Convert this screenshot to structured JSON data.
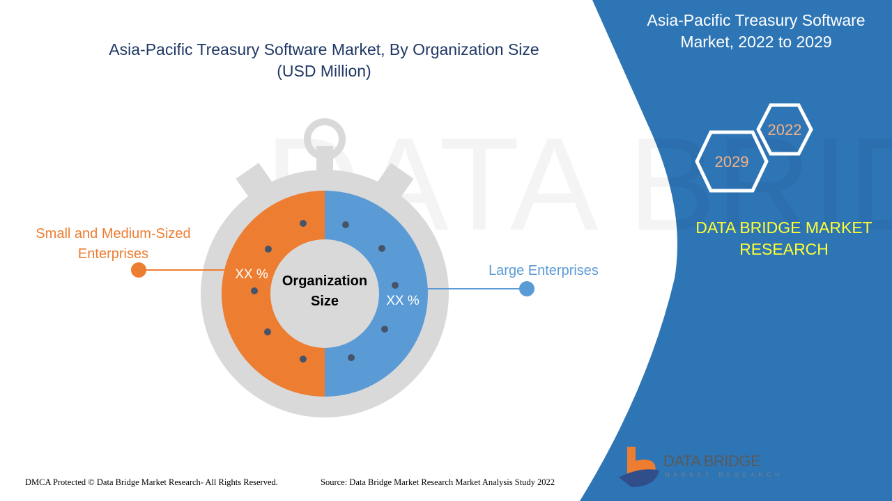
{
  "title_line1": "Asia-Pacific Treasury Software Market, By Organization Size",
  "title_line2": "(USD Million)",
  "right_panel": {
    "title_line1": "Asia-Pacific Treasury Software",
    "title_line2": "Market, 2022 to 2029",
    "year_start": "2022",
    "year_end": "2029",
    "brand_line1": "DATA BRIDGE MARKET",
    "brand_line2": "RESEARCH"
  },
  "colors": {
    "orange": "#ed7d31",
    "blue": "#5b9bd5",
    "panel": "#2e75b6",
    "gray": "#d9d9d9"
  },
  "chart_data": {
    "type": "pie",
    "title": "Asia-Pacific Treasury Software Market, By Organization Size (USD Million)",
    "center_label_line1": "Organization",
    "center_label_line2": "Size",
    "categories": [
      "Small and Medium-Sized Enterprises",
      "Large Enterprises"
    ],
    "legend_left_line1": "Small and Medium-Sized",
    "legend_left_line2": "Enterprises",
    "data_labels": [
      "XX %",
      "XX %"
    ],
    "colors": [
      "#ed7d31",
      "#5b9bd5"
    ]
  },
  "logo": {
    "name": "DATA BRIDGE",
    "tagline": "MARKET RESEARCH"
  },
  "footer": {
    "copyright": "DMCA Protected © Data Bridge Market Research- All Rights Reserved.",
    "source": "Source: Data Bridge Market Research Market Analysis Study 2022"
  }
}
